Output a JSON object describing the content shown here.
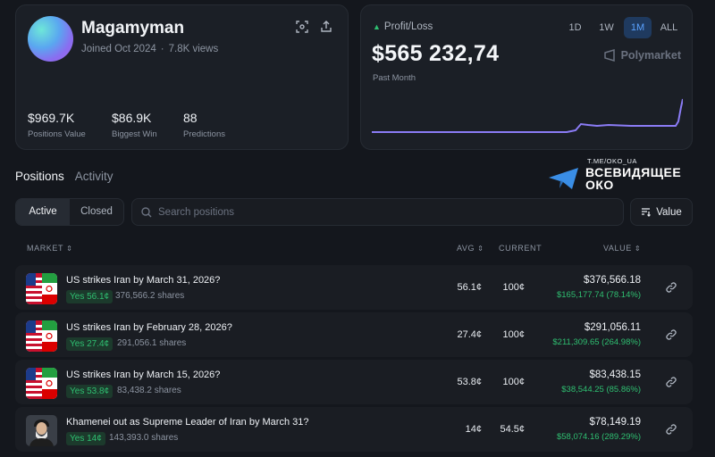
{
  "profile": {
    "username": "Magamyman",
    "joined": "Joined Oct 2024",
    "views": "7.8K views",
    "stats": [
      {
        "value": "$969.7K",
        "label": "Positions Value"
      },
      {
        "value": "$86.9K",
        "label": "Biggest Win"
      },
      {
        "value": "88",
        "label": "Predictions"
      }
    ],
    "icons": [
      "scan-icon",
      "share-icon"
    ]
  },
  "pnl": {
    "label": "Profit/Loss",
    "value": "$565 232,74",
    "period": "Past Month",
    "ranges": [
      "1D",
      "1W",
      "1M",
      "ALL"
    ],
    "active_range": "1M",
    "brand": "Polymarket",
    "line_color": "#8b7cf6"
  },
  "tabs": {
    "positions": "Positions",
    "activity": "Activity"
  },
  "watermark": {
    "small": "T.ME/OKO_UA",
    "line1": "ВСЕВИДЯЩЕЕ",
    "line2": "ОКО"
  },
  "filters": {
    "active": "Active",
    "closed": "Closed",
    "search_placeholder": "Search positions",
    "sort_label": "Value"
  },
  "table": {
    "headers": {
      "market": "MARKET",
      "avg": "AVG",
      "current": "CURRENT",
      "value": "VALUE"
    },
    "rows": [
      {
        "title": "US strikes Iran by March 31, 2026?",
        "outcome": "Yes 56.1¢",
        "shares": "376,566.2 shares",
        "avg": "56.1¢",
        "current": "100¢",
        "value": "$376,566.18",
        "pnl": "$165,177.74 (78.14%)",
        "thumb": "us-iran-flags"
      },
      {
        "title": "US strikes Iran by February 28, 2026?",
        "outcome": "Yes 27.4¢",
        "shares": "291,056.1 shares",
        "avg": "27.4¢",
        "current": "100¢",
        "value": "$291,056.11",
        "pnl": "$211,309.65 (264.98%)",
        "thumb": "us-iran-flags"
      },
      {
        "title": "US strikes Iran by March 15, 2026?",
        "outcome": "Yes 53.8¢",
        "shares": "83,438.2 shares",
        "avg": "53.8¢",
        "current": "100¢",
        "value": "$83,438.15",
        "pnl": "$38,544.25 (85.86%)",
        "thumb": "us-iran-flags"
      },
      {
        "title": "Khamenei out as Supreme Leader of Iran by March 31?",
        "outcome": "Yes 14¢",
        "shares": "143,393.0 shares",
        "avg": "14¢",
        "current": "54.5¢",
        "value": "$78,149.19",
        "pnl": "$58,074.16 (289.29%)",
        "thumb": "portrait"
      }
    ]
  }
}
